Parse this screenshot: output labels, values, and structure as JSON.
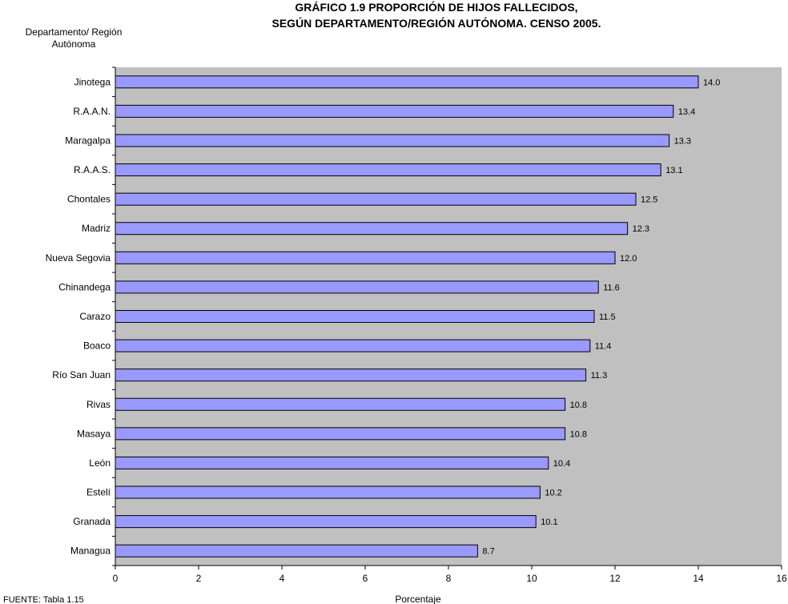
{
  "chart_data": {
    "type": "bar",
    "orientation": "horizontal",
    "title": [
      "GRÁFICO 1.9  PROPORCIÓN DE HIJOS FALLECIDOS,",
      "SEGÚN DEPARTAMENTO/REGIÓN AUTÓNOMA.  CENSO 2005."
    ],
    "ylabel": [
      "Departamento/ Región",
      "Autónoma"
    ],
    "xlabel": "Porcentaje",
    "source": "FUENTE: Tabla 1.15",
    "categories": [
      "Jinotega",
      "R.A.A.N.",
      "Maragalpa",
      "R.A.A.S.",
      "Chontales",
      "Madriz",
      "Nueva Segovia",
      "Chinandega",
      "Carazo",
      "Boaco",
      "Río San Juan",
      "Rivas",
      "Masaya",
      "León",
      "Estelí",
      "Granada",
      "Managua"
    ],
    "values": [
      14.0,
      13.4,
      13.3,
      13.1,
      12.5,
      12.3,
      12.0,
      11.6,
      11.5,
      11.4,
      11.3,
      10.8,
      10.8,
      10.4,
      10.2,
      10.1,
      8.7
    ],
    "value_labels": [
      "14.0",
      "13.4",
      "13.3",
      "13.1",
      "12.5",
      "12.3",
      "12.0",
      "11.6",
      "11.5",
      "11.4",
      "11.3",
      "10.8",
      "10.8",
      "10.4",
      "10.2",
      "10.1",
      "8.7"
    ],
    "xlim": [
      0,
      16
    ],
    "xticks": [
      0,
      2,
      4,
      6,
      8,
      10,
      12,
      14,
      16
    ],
    "grid": false,
    "legend": "none",
    "colors": {
      "bar": "#9999ff",
      "bar_edge": "#000000",
      "plot_bg": "#c0c0c0"
    }
  }
}
